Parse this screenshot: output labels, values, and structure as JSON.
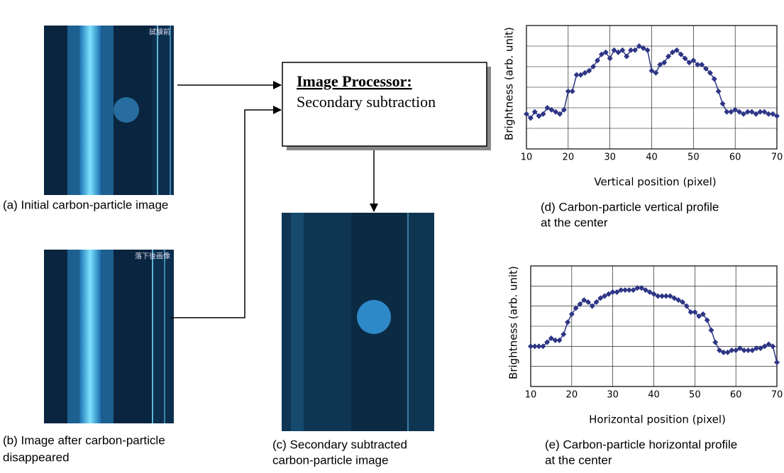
{
  "images": [
    {
      "overlay_text": "試験前",
      "caption_lines": [
        "(a)  Initial carbon-particle image"
      ]
    },
    {
      "overlay_text": "落下後画像",
      "caption_lines": [
        "(b)  Image after carbon-particle",
        "disappeared"
      ]
    },
    {
      "caption_lines": [
        "(c)  Secondary subtracted",
        "carbon-particle image"
      ]
    }
  ],
  "processor": {
    "title": "Image Processor:",
    "text": "Secondary subtraction"
  },
  "chart_data": [
    {
      "type": "line",
      "y_label": "Brightness (arb. unit)",
      "x_label": "Vertical position (pixel)",
      "caption_lines": [
        "(d) Carbon-particle vertical profile",
        "at the center"
      ],
      "color": "#2e3585",
      "x": [
        10,
        11,
        12,
        13,
        14,
        15,
        16,
        17,
        18,
        19,
        20,
        21,
        22,
        23,
        24,
        25,
        26,
        27,
        28,
        29,
        30,
        31,
        32,
        33,
        34,
        35,
        36,
        37,
        38,
        39,
        40,
        41,
        42,
        43,
        44,
        45,
        46,
        47,
        48,
        49,
        50,
        51,
        52,
        53,
        54,
        55,
        56,
        57,
        58,
        59,
        60,
        61,
        62,
        63,
        64,
        65,
        66,
        67,
        68,
        69,
        70
      ],
      "values": [
        1.7,
        1.5,
        1.8,
        1.6,
        1.7,
        2.0,
        1.9,
        1.8,
        1.7,
        1.9,
        2.8,
        2.8,
        3.6,
        3.6,
        3.7,
        3.8,
        4.0,
        4.3,
        4.6,
        4.7,
        4.4,
        4.8,
        4.7,
        4.8,
        4.5,
        4.8,
        4.8,
        5.0,
        4.9,
        4.8,
        3.8,
        3.7,
        4.1,
        4.2,
        4.5,
        4.7,
        4.8,
        4.6,
        4.4,
        4.2,
        4.3,
        4.1,
        4.1,
        3.9,
        3.7,
        3.4,
        2.8,
        2.2,
        1.8,
        1.8,
        1.9,
        1.8,
        1.7,
        1.8,
        1.8,
        1.7,
        1.8,
        1.8,
        1.7,
        1.7,
        1.6
      ],
      "xlim": [
        10,
        70
      ],
      "ylim": [
        0,
        6
      ],
      "xticks": [
        10,
        20,
        30,
        40,
        50,
        60,
        70
      ],
      "grid": true
    },
    {
      "type": "line",
      "y_label": "Brightness (arb. unit)",
      "x_label": "Horizontal position (pixel)",
      "caption_lines": [
        "(e) Carbon-particle horizontal profile",
        "at the center"
      ],
      "color": "#2e3585",
      "x": [
        10,
        11,
        12,
        13,
        14,
        15,
        16,
        17,
        18,
        19,
        20,
        21,
        22,
        23,
        24,
        25,
        26,
        27,
        28,
        29,
        30,
        31,
        32,
        33,
        34,
        35,
        36,
        37,
        38,
        39,
        40,
        41,
        42,
        43,
        44,
        45,
        46,
        47,
        48,
        49,
        50,
        51,
        52,
        53,
        54,
        55,
        56,
        57,
        58,
        59,
        60,
        61,
        62,
        63,
        64,
        65,
        66,
        67,
        68,
        69,
        70
      ],
      "values": [
        2.0,
        2.0,
        2.0,
        2.0,
        2.2,
        2.4,
        2.3,
        2.3,
        2.6,
        3.2,
        3.6,
        3.9,
        4.1,
        4.3,
        4.2,
        4.0,
        4.2,
        4.4,
        4.5,
        4.6,
        4.7,
        4.7,
        4.8,
        4.8,
        4.8,
        4.8,
        4.9,
        4.9,
        4.8,
        4.7,
        4.6,
        4.5,
        4.5,
        4.5,
        4.5,
        4.4,
        4.3,
        4.2,
        4.0,
        3.7,
        3.7,
        3.5,
        3.6,
        3.3,
        2.8,
        2.2,
        1.8,
        1.7,
        1.7,
        1.8,
        1.8,
        1.9,
        1.8,
        1.8,
        1.8,
        1.9,
        1.9,
        2.0,
        2.1,
        2.0,
        1.2
      ],
      "xlim": [
        10,
        70
      ],
      "ylim": [
        0,
        6
      ],
      "xticks": [
        10,
        20,
        30,
        40,
        50,
        60,
        70
      ],
      "grid": true
    }
  ]
}
